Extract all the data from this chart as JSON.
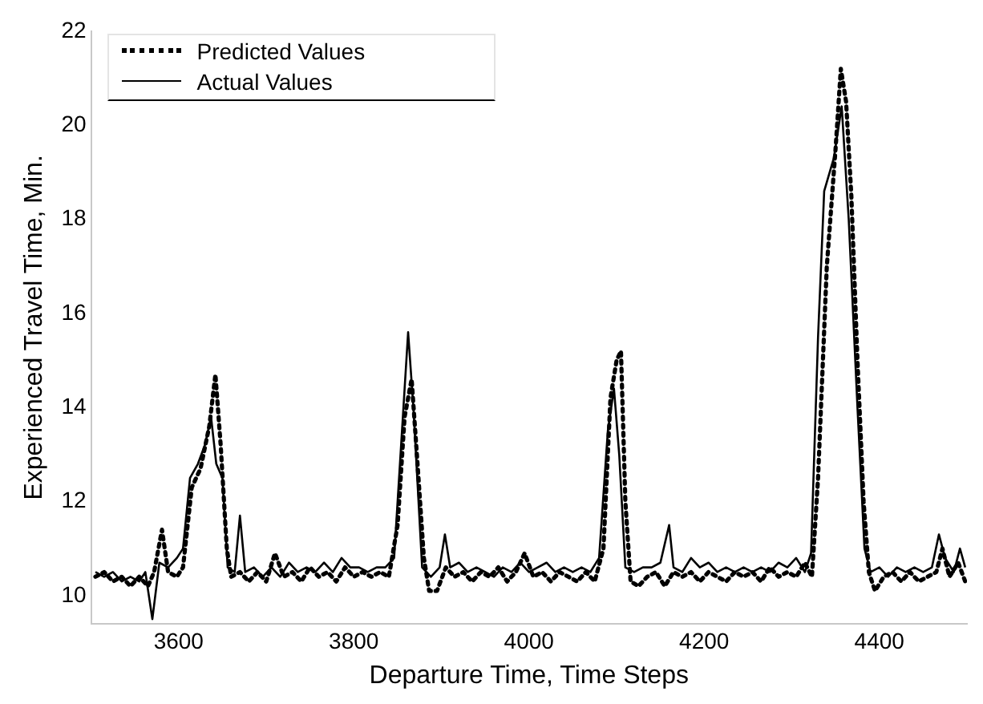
{
  "chart_data": {
    "type": "line",
    "xlabel": "Departure Time, Time Steps",
    "ylabel": "Experienced Travel Time, Min.",
    "xlim": [
      3500,
      4500
    ],
    "xticks": [
      3600,
      3800,
      4000,
      4200,
      4400
    ],
    "ylim": [
      9.4,
      22
    ],
    "yticks": [
      10,
      12,
      14,
      16,
      18,
      20,
      22
    ],
    "grid": false,
    "legend": "top left",
    "marker": "none",
    "series": [
      {
        "name": "Predicted Values",
        "color": "#000000",
        "line_style": "dotted",
        "x": [
          3505,
          3515,
          3525,
          3535,
          3545,
          3555,
          3565,
          3572,
          3581,
          3588,
          3598,
          3605,
          3615,
          3625,
          3635,
          3642,
          3648,
          3655,
          3660,
          3670,
          3680,
          3690,
          3700,
          3710,
          3720,
          3730,
          3740,
          3750,
          3760,
          3770,
          3780,
          3790,
          3800,
          3810,
          3820,
          3830,
          3840,
          3850,
          3858,
          3866,
          3872,
          3880,
          3886,
          3895,
          3905,
          3915,
          3925,
          3935,
          3945,
          3955,
          3965,
          3975,
          3985,
          3995,
          4005,
          4015,
          4025,
          4035,
          4045,
          4055,
          4065,
          4075,
          4085,
          4093,
          4100,
          4105,
          4110,
          4116,
          4125,
          4135,
          4145,
          4155,
          4165,
          4175,
          4185,
          4195,
          4205,
          4215,
          4225,
          4235,
          4245,
          4255,
          4265,
          4275,
          4285,
          4295,
          4305,
          4315,
          4323,
          4330,
          4340,
          4350,
          4356,
          4362,
          4368,
          4375,
          4382,
          4388,
          4395,
          4405,
          4415,
          4425,
          4435,
          4445,
          4455,
          4465,
          4472,
          4480,
          4490,
          4498
        ],
        "values": [
          10.4,
          10.5,
          10.3,
          10.4,
          10.2,
          10.4,
          10.2,
          10.5,
          11.4,
          10.5,
          10.4,
          10.6,
          12.3,
          12.7,
          13.6,
          14.7,
          13.2,
          11.0,
          10.4,
          10.5,
          10.3,
          10.5,
          10.3,
          10.9,
          10.4,
          10.5,
          10.3,
          10.6,
          10.4,
          10.5,
          10.3,
          10.6,
          10.4,
          10.5,
          10.4,
          10.5,
          10.4,
          11.5,
          13.8,
          14.6,
          13.0,
          10.8,
          10.1,
          10.1,
          10.6,
          10.4,
          10.5,
          10.3,
          10.5,
          10.4,
          10.6,
          10.3,
          10.5,
          10.9,
          10.4,
          10.5,
          10.3,
          10.5,
          10.4,
          10.3,
          10.5,
          10.3,
          11.0,
          14.2,
          15.0,
          15.2,
          12.0,
          10.3,
          10.2,
          10.4,
          10.5,
          10.2,
          10.5,
          10.4,
          10.5,
          10.3,
          10.5,
          10.4,
          10.3,
          10.5,
          10.4,
          10.5,
          10.3,
          10.6,
          10.4,
          10.5,
          10.4,
          10.7,
          10.4,
          12.5,
          17.0,
          19.5,
          21.2,
          20.5,
          18.5,
          15.0,
          12.0,
          10.5,
          10.1,
          10.4,
          10.5,
          10.3,
          10.5,
          10.3,
          10.4,
          10.5,
          11.0,
          10.4,
          10.7,
          10.3
        ]
      },
      {
        "name": "Actual Values",
        "color": "#000000",
        "line_style": "solid",
        "x": [
          3505,
          3515,
          3525,
          3535,
          3545,
          3555,
          3562,
          3570,
          3578,
          3588,
          3598,
          3605,
          3613,
          3622,
          3630,
          3637,
          3643,
          3650,
          3656,
          3664,
          3670,
          3676,
          3686,
          3696,
          3706,
          3716,
          3726,
          3736,
          3746,
          3756,
          3766,
          3776,
          3786,
          3796,
          3806,
          3816,
          3826,
          3836,
          3846,
          3855,
          3862,
          3868,
          3878,
          3888,
          3898,
          3904,
          3910,
          3920,
          3930,
          3940,
          3950,
          3960,
          3970,
          3980,
          3990,
          4000,
          4010,
          4020,
          4030,
          4040,
          4050,
          4060,
          4070,
          4080,
          4090,
          4097,
          4103,
          4110,
          4120,
          4130,
          4140,
          4150,
          4160,
          4165,
          4175,
          4185,
          4195,
          4205,
          4215,
          4225,
          4235,
          4245,
          4255,
          4265,
          4275,
          4285,
          4295,
          4305,
          4315,
          4322,
          4330,
          4337,
          4348,
          4357,
          4365,
          4375,
          4383,
          4390,
          4400,
          4410,
          4420,
          4430,
          4440,
          4450,
          4460,
          4468,
          4475,
          4485,
          4492,
          4498
        ],
        "values": [
          10.5,
          10.4,
          10.5,
          10.3,
          10.4,
          10.3,
          10.5,
          9.5,
          10.7,
          10.6,
          10.8,
          11.0,
          12.5,
          12.8,
          13.2,
          13.8,
          12.8,
          12.5,
          10.6,
          10.5,
          11.7,
          10.5,
          10.6,
          10.4,
          10.6,
          10.4,
          10.7,
          10.5,
          10.6,
          10.5,
          10.7,
          10.5,
          10.8,
          10.6,
          10.6,
          10.5,
          10.6,
          10.6,
          10.8,
          13.5,
          15.6,
          14.0,
          10.6,
          10.4,
          10.6,
          11.3,
          10.6,
          10.7,
          10.5,
          10.6,
          10.5,
          10.4,
          10.6,
          10.5,
          10.7,
          10.5,
          10.6,
          10.7,
          10.5,
          10.6,
          10.5,
          10.6,
          10.5,
          10.8,
          13.5,
          14.4,
          13.0,
          10.6,
          10.5,
          10.6,
          10.6,
          10.7,
          11.5,
          10.6,
          10.5,
          10.8,
          10.6,
          10.7,
          10.5,
          10.6,
          10.5,
          10.6,
          10.5,
          10.6,
          10.5,
          10.7,
          10.6,
          10.8,
          10.5,
          10.9,
          15.5,
          18.6,
          19.3,
          20.4,
          18.0,
          14.0,
          11.0,
          10.5,
          10.6,
          10.4,
          10.6,
          10.5,
          10.6,
          10.5,
          10.6,
          11.3,
          10.8,
          10.5,
          11.0,
          10.6
        ]
      }
    ]
  }
}
